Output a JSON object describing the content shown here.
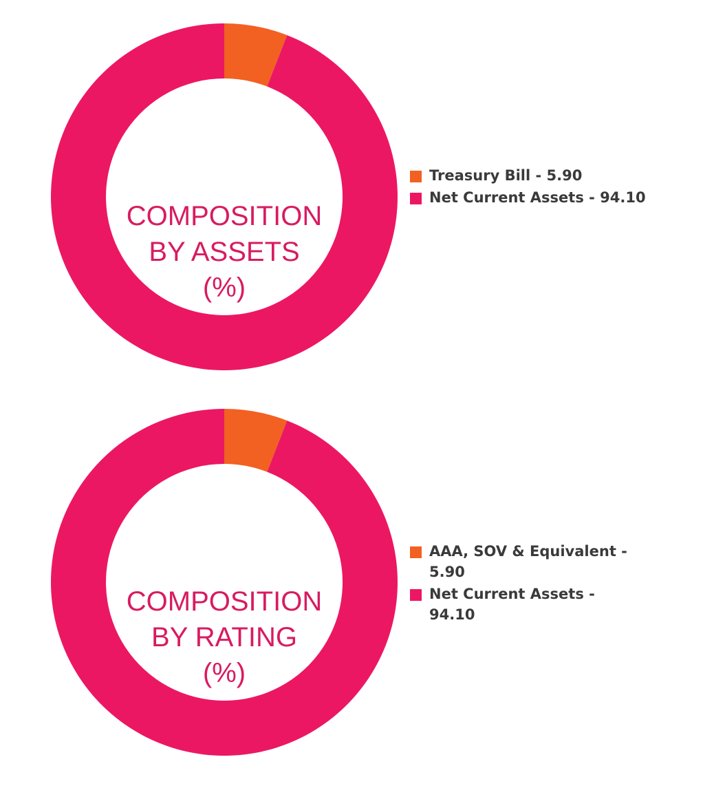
{
  "colors": {
    "orange": "#f26122",
    "pink": "#ec1763",
    "title": "#d81b60",
    "legend_text": "#3a3a3a"
  },
  "charts": [
    {
      "center_title": [
        "COMPOSITION",
        "BY ASSETS",
        "(%)"
      ],
      "legend": [
        {
          "label": "Treasury Bill - 5.90",
          "color": "#f26122"
        },
        {
          "label": "Net Current Assets - 94.10",
          "color": "#ec1763"
        }
      ]
    },
    {
      "center_title": [
        "COMPOSITION",
        "BY RATING",
        "(%)"
      ],
      "legend": [
        {
          "label": "AAA, SOV & Equivalent - 5.90",
          "color": "#f26122"
        },
        {
          "label": "Net Current Assets - 94.10",
          "color": "#ec1763"
        }
      ]
    }
  ],
  "chart_data": [
    {
      "type": "pie",
      "title": "COMPOSITION BY ASSETS (%)",
      "categories": [
        "Treasury Bill",
        "Net Current Assets"
      ],
      "values": [
        5.9,
        94.1
      ],
      "colors": [
        "#f26122",
        "#ec1763"
      ],
      "donut": true,
      "legend_position": "right"
    },
    {
      "type": "pie",
      "title": "COMPOSITION BY RATING (%)",
      "categories": [
        "AAA, SOV & Equivalent",
        "Net Current Assets"
      ],
      "values": [
        5.9,
        94.1
      ],
      "colors": [
        "#f26122",
        "#ec1763"
      ],
      "donut": true,
      "legend_position": "right"
    }
  ]
}
